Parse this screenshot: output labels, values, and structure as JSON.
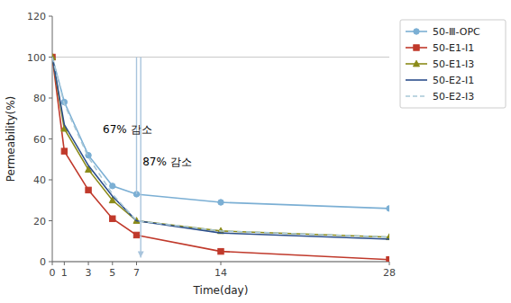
{
  "chart_data": {
    "type": "line",
    "x": [
      0,
      1,
      3,
      5,
      7,
      14,
      28
    ],
    "series": [
      {
        "name": "50-Ⅲ-OPC",
        "color": "#7BAFD4",
        "marker": "circle",
        "line_style": "solid",
        "values": [
          100,
          78,
          52,
          37,
          33,
          29,
          26
        ]
      },
      {
        "name": "50-E1-I1",
        "color": "#C0392B",
        "marker": "square",
        "line_style": "solid",
        "values": [
          100,
          54,
          35,
          21,
          13,
          5,
          1
        ]
      },
      {
        "name": "50-E1-I3",
        "color": "#8B8B1A",
        "marker": "triangle",
        "line_style": "solid",
        "values": [
          100,
          65,
          45,
          30,
          20,
          15,
          12
        ]
      },
      {
        "name": "50-E2-I1",
        "color": "#2C4F8C",
        "marker": "none",
        "line_style": "solid",
        "values": [
          100,
          67,
          47,
          32,
          20,
          14,
          11
        ]
      },
      {
        "name": "50-E2-I3",
        "color": "#A8C8D8",
        "marker": "none",
        "line_style": "dashed",
        "values": [
          100,
          77,
          51,
          33,
          20,
          15,
          12
        ]
      }
    ],
    "x_label": "Time(day)",
    "y_label": "Permeability(%)",
    "xlim": [
      0,
      28
    ],
    "ylim": [
      0,
      120
    ],
    "xticks": [
      0,
      1,
      3,
      5,
      7,
      14,
      28
    ],
    "yticks": [
      0,
      20,
      40,
      60,
      80,
      100,
      120
    ],
    "hlines": [
      100,
      0
    ],
    "annotations": [
      {
        "text": "67% 감소",
        "x": 4.2,
        "y": 63,
        "line": {
          "x": 7.0,
          "from": 100,
          "to": 33,
          "arrow": false,
          "color": "#A8C4DC"
        }
      },
      {
        "text": "87% 감소",
        "x": 7.5,
        "y": 47,
        "line": {
          "x": 7.35,
          "from": 100,
          "to": 2,
          "arrow": true,
          "color": "#A8C4DC"
        }
      }
    ],
    "grid": false,
    "legend": "right"
  }
}
